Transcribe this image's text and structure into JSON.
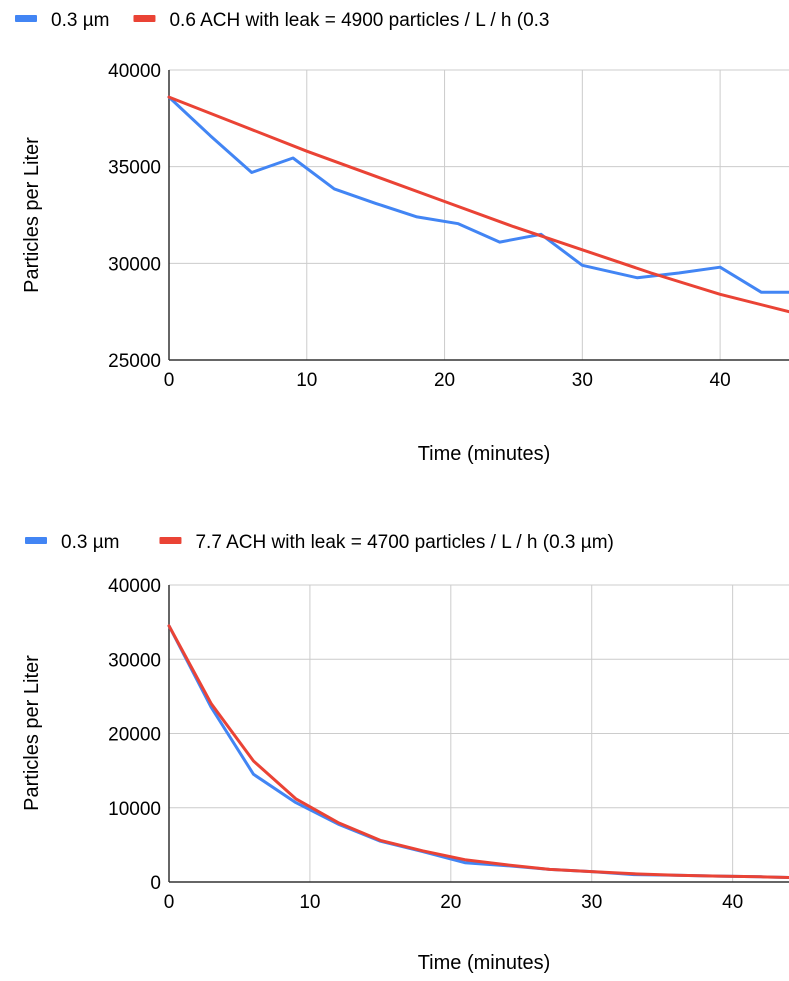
{
  "chart_data": [
    {
      "type": "line",
      "title": "",
      "xlabel": "Time (minutes)",
      "ylabel": "Particles per Liter",
      "xlim": [
        0,
        45
      ],
      "ylim": [
        25000,
        40000
      ],
      "xticks": [
        0,
        10,
        20,
        30,
        40
      ],
      "yticks": [
        25000,
        30000,
        35000,
        40000
      ],
      "grid": true,
      "legend_position": "top",
      "series": [
        {
          "name": "0.3 µm",
          "color": "#4285F4",
          "x": [
            0,
            3,
            6,
            9,
            12,
            15,
            18,
            21,
            24,
            27,
            30,
            34,
            37,
            40,
            43,
            45
          ],
          "y": [
            38600,
            36600,
            34700,
            35450,
            33850,
            33100,
            32400,
            32050,
            31100,
            31500,
            29900,
            29250,
            29500,
            29800,
            28500,
            28500
          ]
        },
        {
          "name": "0.6 ACH with leak = 4900 particles / L / h (0.3",
          "color": "#EA4335",
          "x": [
            0,
            5,
            10,
            15,
            20,
            25,
            30,
            35,
            40,
            45
          ],
          "y": [
            38600,
            37200,
            35800,
            34500,
            33200,
            31900,
            30700,
            29500,
            28400,
            27500
          ]
        }
      ]
    },
    {
      "type": "line",
      "title": "",
      "xlabel": "Time (minutes)",
      "ylabel": "Particles per Liter",
      "xlim": [
        0,
        44
      ],
      "ylim": [
        0,
        40000
      ],
      "xticks": [
        0,
        10,
        20,
        30,
        40
      ],
      "yticks": [
        0,
        10000,
        20000,
        30000,
        40000
      ],
      "grid": true,
      "legend_position": "top",
      "series": [
        {
          "name": "0.3 µm",
          "color": "#4285F4",
          "x": [
            0,
            3,
            6,
            9,
            12,
            15,
            18,
            21,
            24,
            27,
            30,
            33,
            36,
            39,
            42,
            44
          ],
          "y": [
            34500,
            23500,
            14500,
            10700,
            7800,
            5500,
            4100,
            2600,
            2200,
            1700,
            1400,
            1000,
            900,
            800,
            700,
            600
          ]
        },
        {
          "name": "7.7 ACH with leak = 4700 particles / L / h (0.3 µm)",
          "color": "#EA4335",
          "x": [
            0,
            3,
            6,
            9,
            12,
            15,
            18,
            21,
            24,
            27,
            30,
            33,
            36,
            39,
            42,
            44
          ],
          "y": [
            34500,
            24000,
            16300,
            11200,
            8000,
            5600,
            4200,
            3000,
            2300,
            1700,
            1400,
            1100,
            900,
            800,
            700,
            600
          ]
        }
      ]
    }
  ]
}
